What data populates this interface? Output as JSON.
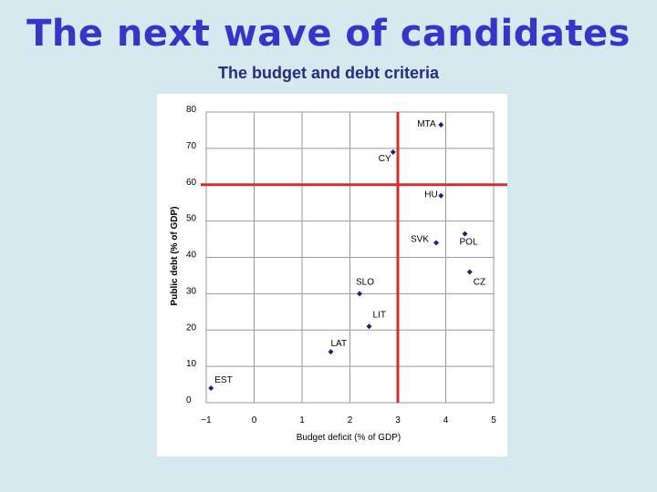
{
  "slide": {
    "title": "The next wave of candidates",
    "subtitle": "The budget and debt criteria"
  },
  "colors": {
    "background": "#d5e9ef",
    "title": "#3535c8",
    "point": "#1a237e",
    "threshold": "#d32f2f"
  },
  "chart_data": {
    "type": "scatter",
    "title": "",
    "xlabel": "Budget deficit (% of GDP)",
    "ylabel": "Public debt (% of GDP)",
    "xlim": [
      -1,
      5
    ],
    "ylim": [
      0,
      80
    ],
    "xticks": [
      -1,
      0,
      1,
      2,
      3,
      4,
      5
    ],
    "yticks": [
      0,
      10,
      20,
      30,
      40,
      50,
      60,
      70,
      80
    ],
    "grid": true,
    "thresholds": {
      "x": 3,
      "y": 60
    },
    "points": [
      {
        "label": "MTA",
        "x": 3.9,
        "y": 76.5
      },
      {
        "label": "CY",
        "x": 2.9,
        "y": 69
      },
      {
        "label": "HU",
        "x": 3.9,
        "y": 57
      },
      {
        "label": "POL",
        "x": 4.4,
        "y": 46.5
      },
      {
        "label": "SVK",
        "x": 3.8,
        "y": 44
      },
      {
        "label": "CZ",
        "x": 4.5,
        "y": 36
      },
      {
        "label": "SLO",
        "x": 2.2,
        "y": 30
      },
      {
        "label": "LIT",
        "x": 2.4,
        "y": 21
      },
      {
        "label": "LAT",
        "x": 1.6,
        "y": 14
      },
      {
        "label": "EST",
        "x": -0.9,
        "y": 4
      }
    ]
  }
}
